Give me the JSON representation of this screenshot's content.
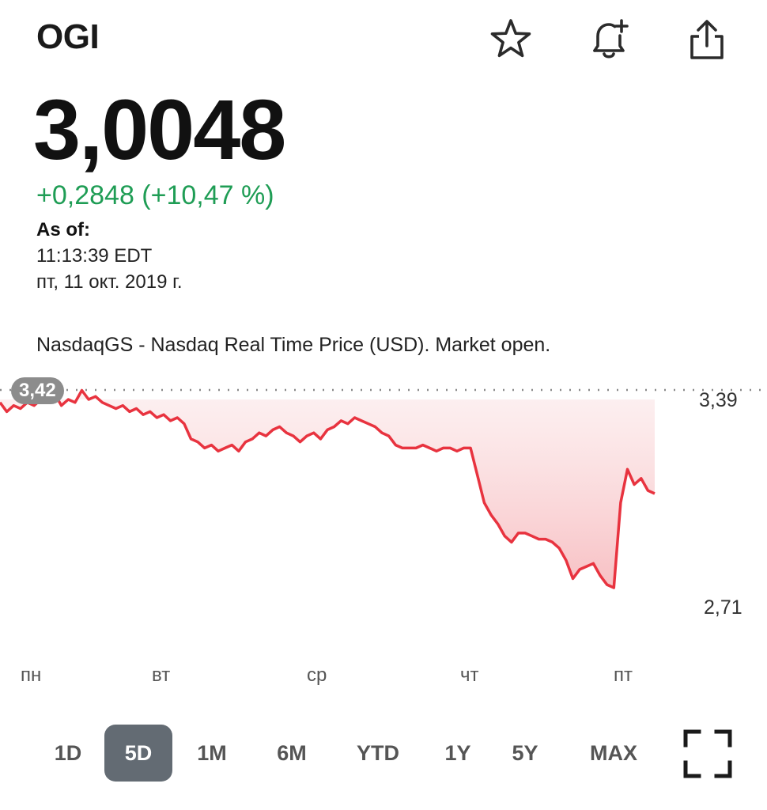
{
  "header": {
    "ticker": "OGI",
    "icons": [
      "star-icon",
      "bell-plus-icon",
      "share-icon"
    ]
  },
  "quote": {
    "price": "3,0048",
    "change": "+0,2848 (+10,47 %)",
    "as_of_label": "As of:",
    "as_of_time": "11:13:39 EDT",
    "as_of_date": "пт, 11 окт. 2019 г.",
    "source_line": "NasdaqGS - Nasdaq Real Time Price (USD). Market open."
  },
  "colors": {
    "accent_up": "#1f9d55",
    "line": "#e8333f",
    "fill": "#f7c5c8",
    "tab_active_bg": "#636b73"
  },
  "chart_data": {
    "type": "line",
    "x_labels": [
      "пн",
      "вт",
      "ср",
      "чт",
      "пт"
    ],
    "y_ticks": [
      "3,39",
      "2,71"
    ],
    "high_badge": "3,42",
    "ylim": [
      2.71,
      3.39
    ],
    "grid": false,
    "series": [
      {
        "values": [
          3.38,
          3.35,
          3.37,
          3.36,
          3.38,
          3.37,
          3.39,
          3.38,
          3.41,
          3.37,
          3.39,
          3.38,
          3.42,
          3.39,
          3.4,
          3.38,
          3.37,
          3.36,
          3.37,
          3.35,
          3.36,
          3.34,
          3.35,
          3.33,
          3.34,
          3.32,
          3.33,
          3.31,
          3.26,
          3.25,
          3.23,
          3.24,
          3.22,
          3.23,
          3.24,
          3.22,
          3.25,
          3.26,
          3.28,
          3.27,
          3.29,
          3.3,
          3.28,
          3.27,
          3.25,
          3.27,
          3.28,
          3.26,
          3.29,
          3.3,
          3.32,
          3.31,
          3.33,
          3.32,
          3.31,
          3.3,
          3.28,
          3.27,
          3.24,
          3.23,
          3.23,
          3.23,
          3.24,
          3.23,
          3.22,
          3.23,
          3.23,
          3.22,
          3.23,
          3.23,
          3.14,
          3.05,
          3.01,
          2.98,
          2.94,
          2.92,
          2.95,
          2.95,
          2.94,
          2.93,
          2.93,
          2.92,
          2.9,
          2.86,
          2.8,
          2.83,
          2.84,
          2.85,
          2.81,
          2.78,
          2.77,
          3.05,
          3.16,
          3.11,
          3.13,
          3.09,
          3.08
        ]
      }
    ]
  },
  "ranges": [
    "1D",
    "5D",
    "1M",
    "6M",
    "YTD",
    "1Y",
    "5Y",
    "MAX"
  ],
  "active_range": "5D"
}
